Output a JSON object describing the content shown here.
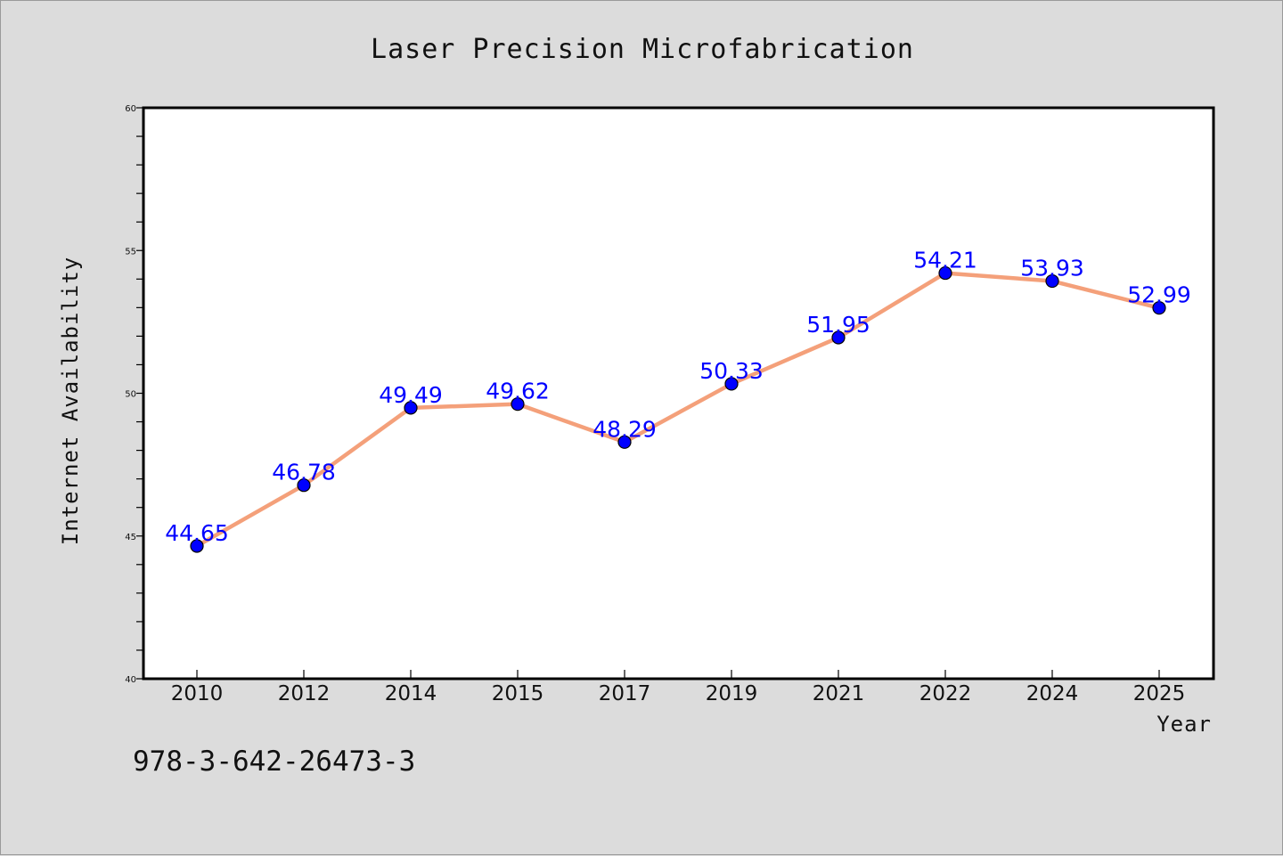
{
  "chart_data": {
    "type": "line",
    "title": "Laser Precision Microfabrication",
    "xlabel": "Year",
    "ylabel": "Internet Availability",
    "x": [
      "2010",
      "2012",
      "2014",
      "2015",
      "2017",
      "2019",
      "2021",
      "2022",
      "2024",
      "2025"
    ],
    "series": [
      {
        "values": [
          44.65,
          46.78,
          49.49,
          49.62,
          48.29,
          50.33,
          51.95,
          54.21,
          53.93,
          52.99
        ]
      }
    ],
    "data_labels": [
      "44.65",
      "46.78",
      "49.49",
      "49.62",
      "48.29",
      "50.33",
      "51.95",
      "54.21",
      "53.93",
      "52.99"
    ],
    "ylim": [
      40,
      60
    ],
    "y_ticks": [
      40,
      45,
      50,
      55,
      60
    ],
    "y_minor_step": 1,
    "grid": false,
    "legend": "none",
    "colors": {
      "line": "#f4a07a",
      "marker": "#0000ff",
      "label": "#0000ff",
      "background": "#dcdcdc",
      "plot": "#ffffff"
    }
  },
  "footer": {
    "isbn": "978-3-642-26473-3"
  }
}
